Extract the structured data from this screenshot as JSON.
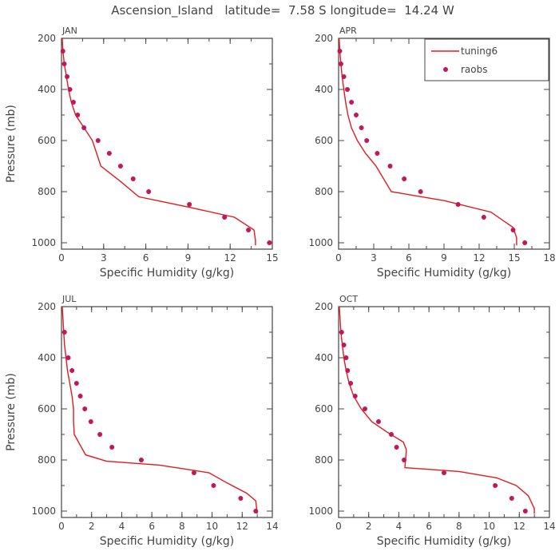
{
  "figure": {
    "title": "Ascension_Island   latitude=  7.58 S longitude=  14.24 W"
  },
  "colors": {
    "model_line": "#e31a1c",
    "obs_points": "#c2185b",
    "axes": "#444444"
  },
  "legend": {
    "placement": "top-right of APR panel",
    "model_label": "tuning6",
    "obs_label": "raobs"
  },
  "chart_data": [
    {
      "type": "line",
      "panel": "JAN",
      "title": "JAN",
      "xlabel": "Specific Humidity (g/kg)",
      "ylabel": "Pressure (mb)",
      "xlim": [
        0,
        15
      ],
      "ylim": [
        200,
        1025
      ],
      "y_inverted": true,
      "xticks": [
        0,
        3,
        6,
        9,
        12,
        15
      ],
      "yticks": [
        200,
        400,
        600,
        800,
        1000
      ],
      "series": [
        {
          "name": "tuning6",
          "style": "line",
          "points": [
            [
              0.05,
              200
            ],
            [
              0.1,
              250
            ],
            [
              0.2,
              300
            ],
            [
              0.35,
              350
            ],
            [
              0.5,
              400
            ],
            [
              0.7,
              450
            ],
            [
              1.0,
              500
            ],
            [
              1.6,
              550
            ],
            [
              2.2,
              600
            ],
            [
              2.8,
              700
            ],
            [
              4.2,
              760
            ],
            [
              5.5,
              820
            ],
            [
              9.0,
              860
            ],
            [
              12.3,
              900
            ],
            [
              13.7,
              950
            ],
            [
              13.8,
              990
            ],
            [
              13.8,
              1010
            ]
          ]
        },
        {
          "name": "raobs",
          "style": "points",
          "points": [
            [
              0.1,
              250
            ],
            [
              0.2,
              300
            ],
            [
              0.4,
              350
            ],
            [
              0.6,
              400
            ],
            [
              0.85,
              450
            ],
            [
              1.15,
              500
            ],
            [
              1.6,
              550
            ],
            [
              2.6,
              600
            ],
            [
              3.4,
              650
            ],
            [
              4.2,
              700
            ],
            [
              5.1,
              750
            ],
            [
              6.2,
              800
            ],
            [
              9.1,
              850
            ],
            [
              11.6,
              900
            ],
            [
              13.3,
              950
            ],
            [
              14.8,
              1000
            ]
          ]
        }
      ]
    },
    {
      "type": "line",
      "panel": "APR",
      "title": "APR",
      "xlabel": "Specific Humidity (g/kg)",
      "ylabel": "",
      "xlim": [
        0,
        18
      ],
      "ylim": [
        200,
        1025
      ],
      "y_inverted": true,
      "xticks": [
        0,
        3,
        6,
        9,
        12,
        15,
        18
      ],
      "yticks": [
        200,
        400,
        600,
        800,
        1000
      ],
      "series": [
        {
          "name": "tuning6",
          "style": "line",
          "points": [
            [
              0.05,
              200
            ],
            [
              0.1,
              250
            ],
            [
              0.2,
              300
            ],
            [
              0.3,
              350
            ],
            [
              0.45,
              400
            ],
            [
              0.6,
              450
            ],
            [
              0.8,
              500
            ],
            [
              1.1,
              550
            ],
            [
              1.6,
              600
            ],
            [
              2.3,
              650
            ],
            [
              3.2,
              700
            ],
            [
              4.5,
              800
            ],
            [
              9.0,
              835
            ],
            [
              13.0,
              880
            ],
            [
              14.9,
              940
            ],
            [
              15.2,
              980
            ],
            [
              15.2,
              1010
            ]
          ]
        },
        {
          "name": "raobs",
          "style": "points",
          "points": [
            [
              0.1,
              250
            ],
            [
              0.2,
              300
            ],
            [
              0.45,
              350
            ],
            [
              0.75,
              400
            ],
            [
              1.1,
              450
            ],
            [
              1.5,
              500
            ],
            [
              1.95,
              550
            ],
            [
              2.4,
              600
            ],
            [
              3.3,
              650
            ],
            [
              4.4,
              700
            ],
            [
              5.6,
              750
            ],
            [
              7.0,
              800
            ],
            [
              10.2,
              850
            ],
            [
              12.4,
              900
            ],
            [
              14.9,
              950
            ],
            [
              15.9,
              1000
            ]
          ]
        }
      ]
    },
    {
      "type": "line",
      "panel": "JUL",
      "title": "JUL",
      "xlabel": "Specific Humidity (g/kg)",
      "ylabel": "Pressure (mb)",
      "xlim": [
        0,
        14
      ],
      "ylim": [
        200,
        1025
      ],
      "y_inverted": true,
      "xticks": [
        0,
        2,
        4,
        6,
        8,
        10,
        12,
        14
      ],
      "yticks": [
        200,
        400,
        600,
        800,
        1000
      ],
      "series": [
        {
          "name": "tuning6",
          "style": "line",
          "points": [
            [
              0.05,
              200
            ],
            [
              0.1,
              250
            ],
            [
              0.15,
              300
            ],
            [
              0.2,
              350
            ],
            [
              0.3,
              400
            ],
            [
              0.4,
              450
            ],
            [
              0.55,
              500
            ],
            [
              0.7,
              550
            ],
            [
              0.8,
              600
            ],
            [
              0.8,
              650
            ],
            [
              0.85,
              700
            ],
            [
              1.6,
              780
            ],
            [
              3.0,
              805
            ],
            [
              6.5,
              820
            ],
            [
              9.8,
              850
            ],
            [
              11.0,
              890
            ],
            [
              12.3,
              930
            ],
            [
              12.9,
              960
            ],
            [
              13.0,
              1010
            ]
          ]
        },
        {
          "name": "raobs",
          "style": "points",
          "points": [
            [
              0.2,
              300
            ],
            [
              0.45,
              400
            ],
            [
              0.7,
              450
            ],
            [
              1.0,
              500
            ],
            [
              1.25,
              550
            ],
            [
              1.55,
              600
            ],
            [
              1.95,
              650
            ],
            [
              2.55,
              700
            ],
            [
              3.35,
              750
            ],
            [
              5.3,
              800
            ],
            [
              8.8,
              850
            ],
            [
              10.1,
              900
            ],
            [
              11.9,
              950
            ],
            [
              12.9,
              1000
            ]
          ]
        }
      ]
    },
    {
      "type": "line",
      "panel": "OCT",
      "title": "OCT",
      "xlabel": "Specific Humidity (g/kg)",
      "ylabel": "",
      "xlim": [
        0,
        14
      ],
      "ylim": [
        200,
        1025
      ],
      "y_inverted": true,
      "xticks": [
        0,
        2,
        4,
        6,
        8,
        10,
        12,
        14
      ],
      "yticks": [
        200,
        400,
        600,
        800,
        1000
      ],
      "series": [
        {
          "name": "tuning6",
          "style": "line",
          "points": [
            [
              0.05,
              200
            ],
            [
              0.1,
              250
            ],
            [
              0.15,
              300
            ],
            [
              0.25,
              350
            ],
            [
              0.35,
              400
            ],
            [
              0.5,
              450
            ],
            [
              0.7,
              500
            ],
            [
              1.0,
              550
            ],
            [
              1.5,
              600
            ],
            [
              2.2,
              650
            ],
            [
              3.2,
              690
            ],
            [
              4.3,
              730
            ],
            [
              4.5,
              760
            ],
            [
              4.4,
              830
            ],
            [
              8.0,
              845
            ],
            [
              10.5,
              870
            ],
            [
              11.8,
              900
            ],
            [
              12.6,
              940
            ],
            [
              13.0,
              990
            ],
            [
              13.0,
              1010
            ]
          ]
        },
        {
          "name": "raobs",
          "style": "points",
          "points": [
            [
              0.2,
              300
            ],
            [
              0.35,
              350
            ],
            [
              0.5,
              400
            ],
            [
              0.6,
              450
            ],
            [
              0.8,
              500
            ],
            [
              1.1,
              550
            ],
            [
              1.75,
              600
            ],
            [
              2.65,
              650
            ],
            [
              3.5,
              700
            ],
            [
              3.85,
              750
            ],
            [
              4.35,
              800
            ],
            [
              7.0,
              850
            ],
            [
              10.4,
              900
            ],
            [
              11.5,
              950
            ],
            [
              12.4,
              1000
            ]
          ]
        }
      ]
    }
  ]
}
